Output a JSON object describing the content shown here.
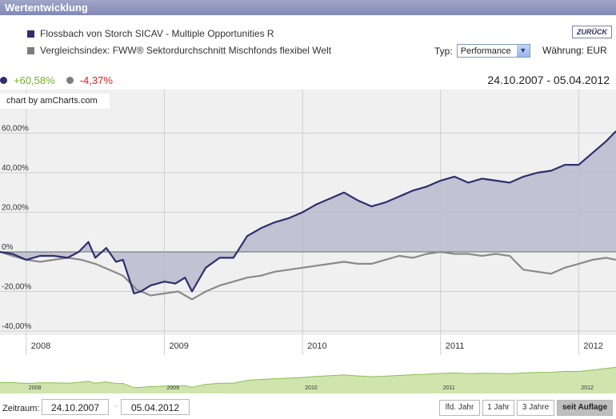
{
  "titlebar": {
    "title": "Wertentwicklung"
  },
  "legend": {
    "fund": {
      "label": "Flossbach von Storch SICAV - Multiple Opportunities R",
      "color": "#2d2f6f"
    },
    "index": {
      "label": "Vergleichsindex: FWW® Sektordurchschnitt Mischfonds flexibel Welt",
      "color": "#7d7d7d"
    }
  },
  "back_button": "ZURÜCK",
  "controls": {
    "type_label": "Typ:",
    "type_value": "Performance",
    "currency_label": "Währung: EUR"
  },
  "performance": {
    "fund_value": "+60,58%",
    "fund_color": "#76b02a",
    "index_value": "-4,37%",
    "index_color": "#e02020"
  },
  "date_range": "24.10.2007 - 05.04.2012",
  "badge": "chart by amCharts.com",
  "chart_data": {
    "type": "area",
    "title": "Wertentwicklung",
    "xlabel": "",
    "ylabel": "",
    "ylim": [
      -42,
      82
    ],
    "xlim": [
      2007.81,
      2012.27
    ],
    "grid": true,
    "y_ticks": [
      {
        "v": 60,
        "label": "60,00%"
      },
      {
        "v": 40,
        "label": "40,00%"
      },
      {
        "v": 20,
        "label": "20,00%"
      },
      {
        "v": 0,
        "label": "0%"
      },
      {
        "v": -20,
        "label": "-20,00%"
      },
      {
        "v": -40,
        "label": "-40,00%"
      }
    ],
    "x_ticks": [
      {
        "v": 2008,
        "label": "2008"
      },
      {
        "v": 2009,
        "label": "2009"
      },
      {
        "v": 2010,
        "label": "2010"
      },
      {
        "v": 2011,
        "label": "2011"
      },
      {
        "v": 2012,
        "label": "2012"
      }
    ],
    "series": [
      {
        "name": "Flossbach von Storch SICAV - Multiple Opportunities R",
        "color": "#2d2f6f",
        "fill": "#b9bacd",
        "x": [
          2007.81,
          2007.9,
          2008.0,
          2008.1,
          2008.2,
          2008.3,
          2008.38,
          2008.45,
          2008.5,
          2008.58,
          2008.65,
          2008.7,
          2008.78,
          2008.83,
          2008.9,
          2009.0,
          2009.08,
          2009.15,
          2009.2,
          2009.3,
          2009.4,
          2009.5,
          2009.6,
          2009.7,
          2009.8,
          2009.9,
          2010.0,
          2010.1,
          2010.2,
          2010.3,
          2010.4,
          2010.5,
          2010.6,
          2010.7,
          2010.8,
          2010.9,
          2011.0,
          2011.1,
          2011.2,
          2011.3,
          2011.4,
          2011.5,
          2011.6,
          2011.7,
          2011.8,
          2011.9,
          2012.0,
          2012.1,
          2012.2,
          2012.27
        ],
        "values": [
          0,
          -1,
          -4,
          -2,
          -2,
          -3,
          0,
          5,
          -3,
          2,
          -5,
          -4,
          -21,
          -20,
          -17,
          -15,
          -16,
          -13,
          -20,
          -8,
          -3,
          -3,
          8,
          12,
          15,
          17,
          20,
          24,
          27,
          30,
          26,
          23,
          25,
          28,
          31,
          33,
          36,
          38,
          35,
          37,
          36,
          35,
          38,
          40,
          41,
          44,
          44,
          50,
          56,
          61
        ]
      },
      {
        "name": "Vergleichsindex: FWW® Sektordurchschnitt Mischfonds flexibel Welt",
        "color": "#8a8a8a",
        "x": [
          2007.81,
          2007.9,
          2008.0,
          2008.1,
          2008.2,
          2008.3,
          2008.4,
          2008.5,
          2008.6,
          2008.7,
          2008.8,
          2008.9,
          2009.0,
          2009.1,
          2009.2,
          2009.3,
          2009.4,
          2009.5,
          2009.6,
          2009.7,
          2009.8,
          2009.9,
          2010.0,
          2010.1,
          2010.2,
          2010.3,
          2010.4,
          2010.5,
          2010.6,
          2010.7,
          2010.8,
          2010.9,
          2011.0,
          2011.1,
          2011.2,
          2011.3,
          2011.4,
          2011.5,
          2011.6,
          2011.7,
          2011.8,
          2011.9,
          2012.0,
          2012.1,
          2012.2,
          2012.27
        ],
        "values": [
          0,
          -2,
          -4,
          -5,
          -4,
          -3,
          -4,
          -6,
          -9,
          -12,
          -19,
          -22,
          -21,
          -20,
          -24,
          -20,
          -17,
          -15,
          -13,
          -12,
          -10,
          -9,
          -8,
          -7,
          -6,
          -5,
          -6,
          -6,
          -4,
          -2,
          -3,
          -1,
          0,
          -1,
          -1,
          -2,
          -1,
          -2,
          -9,
          -10,
          -11,
          -8,
          -6,
          -4,
          -3,
          -4
        ]
      }
    ]
  },
  "scroller": {
    "labels": [
      "2008",
      "2009",
      "2010",
      "2011",
      "2012"
    ],
    "fill": "#cfe5ad",
    "line": "#8dbc55"
  },
  "bottom": {
    "zeitraum_label": "Zeitraum:",
    "from": "24.10.2007",
    "to": "05.04.2012",
    "separator": "-",
    "buttons": [
      "lfd. Jahr",
      "1 Jahr",
      "3 Jahre",
      "seit Auflage"
    ],
    "active": "seit Auflage"
  }
}
